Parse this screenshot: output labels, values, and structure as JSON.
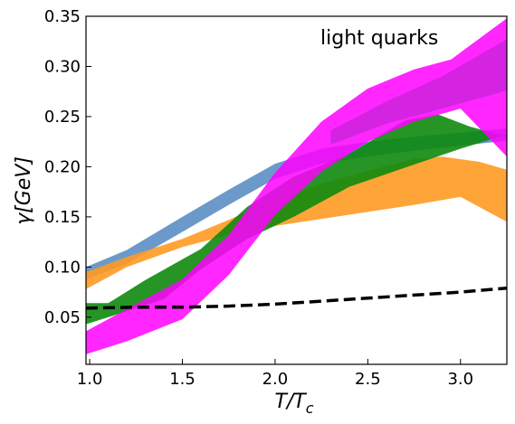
{
  "chart_data": {
    "type": "area",
    "xlabel_main": "T/T",
    "xlabel_sub": "c",
    "ylabel": "γ[GeV]",
    "annotation": "light quarks",
    "xlim": [
      0.98,
      3.25
    ],
    "ylim": [
      0.003,
      0.35
    ],
    "xticks": [
      1.0,
      1.5,
      2.0,
      2.5,
      3.0
    ],
    "xtick_labels": [
      "1.0",
      "1.5",
      "2.0",
      "2.5",
      "3.0"
    ],
    "yticks": [
      0.05,
      0.1,
      0.15,
      0.2,
      0.25,
      0.3,
      0.35
    ],
    "ytick_labels": [
      "0.05",
      "0.10",
      "0.15",
      "0.20",
      "0.25",
      "0.30",
      "0.35"
    ],
    "grid": false,
    "bands": [
      {
        "color": "#5b8fc4",
        "opacity": 0.9,
        "upper": [
          [
            0.98,
            0.1
          ],
          [
            1.2,
            0.117
          ],
          [
            1.5,
            0.15
          ],
          [
            1.75,
            0.177
          ],
          [
            2.0,
            0.203
          ],
          [
            2.25,
            0.218
          ],
          [
            2.5,
            0.225
          ],
          [
            2.75,
            0.23
          ],
          [
            3.0,
            0.234
          ],
          [
            3.25,
            0.238
          ]
        ],
        "lower": [
          [
            0.98,
            0.088
          ],
          [
            1.2,
            0.103
          ],
          [
            1.5,
            0.135
          ],
          [
            1.75,
            0.162
          ],
          [
            2.0,
            0.188
          ],
          [
            2.25,
            0.203
          ],
          [
            2.5,
            0.21
          ],
          [
            2.75,
            0.216
          ],
          [
            3.0,
            0.221
          ],
          [
            3.25,
            0.226
          ]
        ]
      },
      {
        "color": "#ff9a22",
        "opacity": 0.9,
        "upper": [
          [
            0.98,
            0.095
          ],
          [
            1.2,
            0.11
          ],
          [
            1.5,
            0.128
          ],
          [
            1.75,
            0.147
          ],
          [
            2.0,
            0.167
          ],
          [
            2.25,
            0.183
          ],
          [
            2.5,
            0.196
          ],
          [
            2.75,
            0.208
          ],
          [
            2.9,
            0.21
          ],
          [
            3.1,
            0.205
          ],
          [
            3.25,
            0.197
          ]
        ],
        "lower": [
          [
            0.98,
            0.078
          ],
          [
            1.2,
            0.1
          ],
          [
            1.5,
            0.12
          ],
          [
            1.75,
            0.132
          ],
          [
            2.0,
            0.141
          ],
          [
            2.25,
            0.148
          ],
          [
            2.5,
            0.155
          ],
          [
            2.75,
            0.162
          ],
          [
            3.0,
            0.17
          ],
          [
            3.25,
            0.145
          ]
        ]
      },
      {
        "color": "#0e8a0e",
        "opacity": 0.9,
        "upper": [
          [
            0.98,
            0.064
          ],
          [
            1.1,
            0.064
          ],
          [
            1.3,
            0.087
          ],
          [
            1.6,
            0.118
          ],
          [
            1.85,
            0.16
          ],
          [
            2.1,
            0.19
          ],
          [
            2.4,
            0.213
          ],
          [
            2.7,
            0.246
          ],
          [
            2.88,
            0.252
          ],
          [
            3.05,
            0.24
          ],
          [
            3.25,
            0.23
          ]
        ],
        "lower": [
          [
            0.98,
            0.043
          ],
          [
            1.1,
            0.05
          ],
          [
            1.4,
            0.068
          ],
          [
            1.6,
            0.098
          ],
          [
            1.85,
            0.128
          ],
          [
            2.1,
            0.15
          ],
          [
            2.4,
            0.18
          ],
          [
            2.7,
            0.199
          ],
          [
            3.0,
            0.218
          ],
          [
            3.25,
            0.232
          ]
        ]
      },
      {
        "color": "#ff00ff",
        "opacity": 0.85,
        "upper": [
          [
            0.98,
            0.036
          ],
          [
            1.2,
            0.058
          ],
          [
            1.5,
            0.088
          ],
          [
            1.75,
            0.132
          ],
          [
            2.0,
            0.194
          ],
          [
            2.25,
            0.245
          ],
          [
            2.5,
            0.278
          ],
          [
            2.75,
            0.297
          ],
          [
            2.95,
            0.307
          ],
          [
            3.25,
            0.348
          ]
        ],
        "lower": [
          [
            0.98,
            0.013
          ],
          [
            1.2,
            0.026
          ],
          [
            1.5,
            0.048
          ],
          [
            1.75,
            0.092
          ],
          [
            2.0,
            0.152
          ],
          [
            2.25,
            0.195
          ],
          [
            2.5,
            0.225
          ],
          [
            2.75,
            0.245
          ],
          [
            3.0,
            0.258
          ],
          [
            3.25,
            0.21
          ]
        ]
      },
      {
        "color": "#b020c8",
        "opacity": 0.55,
        "upper": [
          [
            2.3,
            0.236
          ],
          [
            2.6,
            0.265
          ],
          [
            2.9,
            0.29
          ],
          [
            3.25,
            0.327
          ]
        ],
        "lower": [
          [
            2.3,
            0.222
          ],
          [
            2.6,
            0.243
          ],
          [
            2.9,
            0.258
          ],
          [
            3.25,
            0.276
          ]
        ]
      }
    ],
    "dashed_line": {
      "color": "#000000",
      "points": [
        [
          0.98,
          0.059
        ],
        [
          1.25,
          0.06
        ],
        [
          1.5,
          0.06
        ],
        [
          1.75,
          0.061
        ],
        [
          2.0,
          0.063
        ],
        [
          2.25,
          0.066
        ],
        [
          2.5,
          0.069
        ],
        [
          2.75,
          0.072
        ],
        [
          3.0,
          0.075
        ],
        [
          3.25,
          0.079
        ]
      ]
    }
  }
}
